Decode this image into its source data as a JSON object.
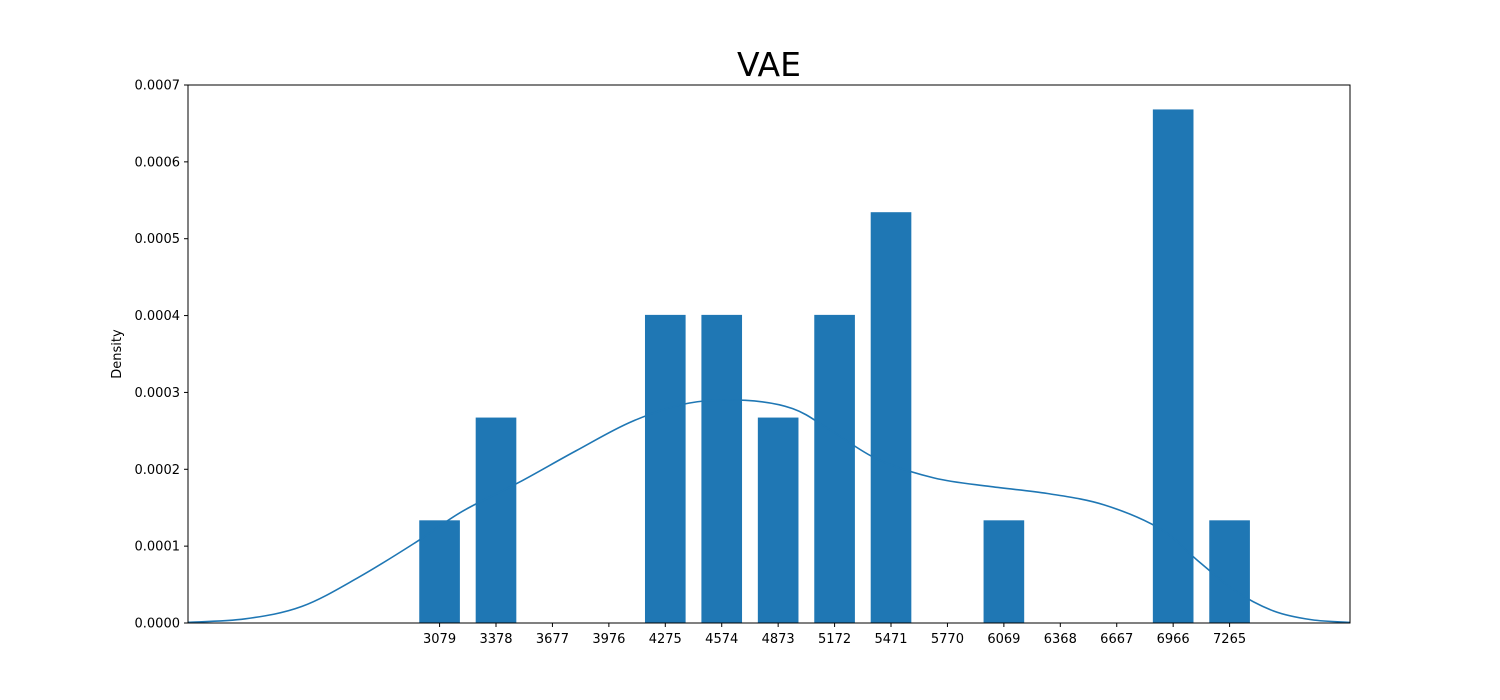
{
  "chart_data": {
    "type": "bar",
    "title": "VAE",
    "xlabel": "",
    "ylabel": "Density",
    "categories": [
      "3079",
      "3378",
      "3677",
      "3976",
      "4275",
      "4574",
      "4873",
      "5172",
      "5471",
      "5770",
      "6069",
      "6368",
      "6667",
      "6966",
      "7265"
    ],
    "values": [
      0.0001336,
      0.0002673,
      0,
      0,
      0.0004009,
      0.0004009,
      0.0002673,
      0.0004009,
      0.0005345,
      0,
      0.0001336,
      0,
      0,
      0.0006682,
      0.0001336
    ],
    "ylim": [
      0,
      0.0007
    ],
    "yticks": [
      "0.0000",
      "0.0001",
      "0.0002",
      "0.0003",
      "0.0004",
      "0.0005",
      "0.0006",
      "0.0007"
    ],
    "ytick_values": [
      0,
      0.0001,
      0.0002,
      0.0003,
      0.0004,
      0.0005,
      0.0006,
      0.0007
    ],
    "xlim": [
      1746,
      7903
    ],
    "kde_curve": {
      "x": [
        1746,
        2050,
        2350,
        2650,
        2950,
        3200,
        3500,
        3800,
        4100,
        4400,
        4700,
        4950,
        5150,
        5400,
        5700,
        6000,
        6300,
        6600,
        6900,
        7100,
        7300,
        7500,
        7700,
        7903
      ],
      "y": [
        9e-07,
        5.4e-06,
        2.16e-05,
        5.94e-05,
        0.0001045,
        0.0001453,
        0.000183,
        0.0002238,
        0.0002624,
        0.0002861,
        0.0002897,
        0.000279,
        0.0002509,
        0.000213,
        0.0001887,
        0.0001775,
        0.0001685,
        0.0001537,
        0.0001221,
        8.04e-05,
        4.09e-05,
        1.55e-05,
        4.2e-06,
        8e-07
      ]
    },
    "grid": false,
    "legend": "none",
    "bar_color": "#1f77b4",
    "line_color": "#1f77b4"
  }
}
